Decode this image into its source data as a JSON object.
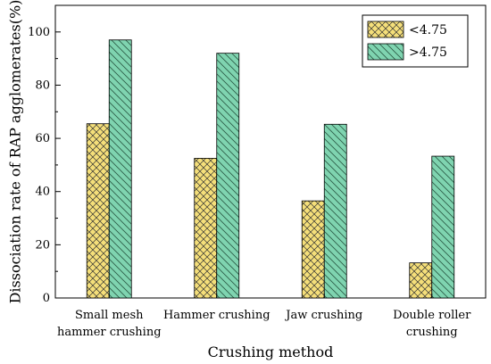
{
  "chart_data": {
    "type": "bar",
    "title": "",
    "xlabel": "Crushing method",
    "ylabel": "Dissociation rate of RAP agglomerates(%)",
    "ylim": [
      0,
      110
    ],
    "yticks": [
      0,
      20,
      40,
      60,
      80,
      100
    ],
    "categories": [
      [
        "Small mesh",
        "hammer crushing"
      ],
      [
        "Hammer crushing"
      ],
      [
        "Jaw crushing"
      ],
      [
        "Double roller",
        "crushing"
      ]
    ],
    "series": [
      {
        "name": "<4.75",
        "values": [
          65.5,
          52.5,
          36.5,
          13.2
        ],
        "color": "#f5df7a",
        "pattern": "crosshatch"
      },
      {
        "name": ">4.75",
        "values": [
          97.0,
          92.0,
          65.3,
          53.3
        ],
        "color": "#7fd4b0",
        "pattern": "diagonal"
      }
    ],
    "legend_position": "top-right",
    "grid": false
  }
}
